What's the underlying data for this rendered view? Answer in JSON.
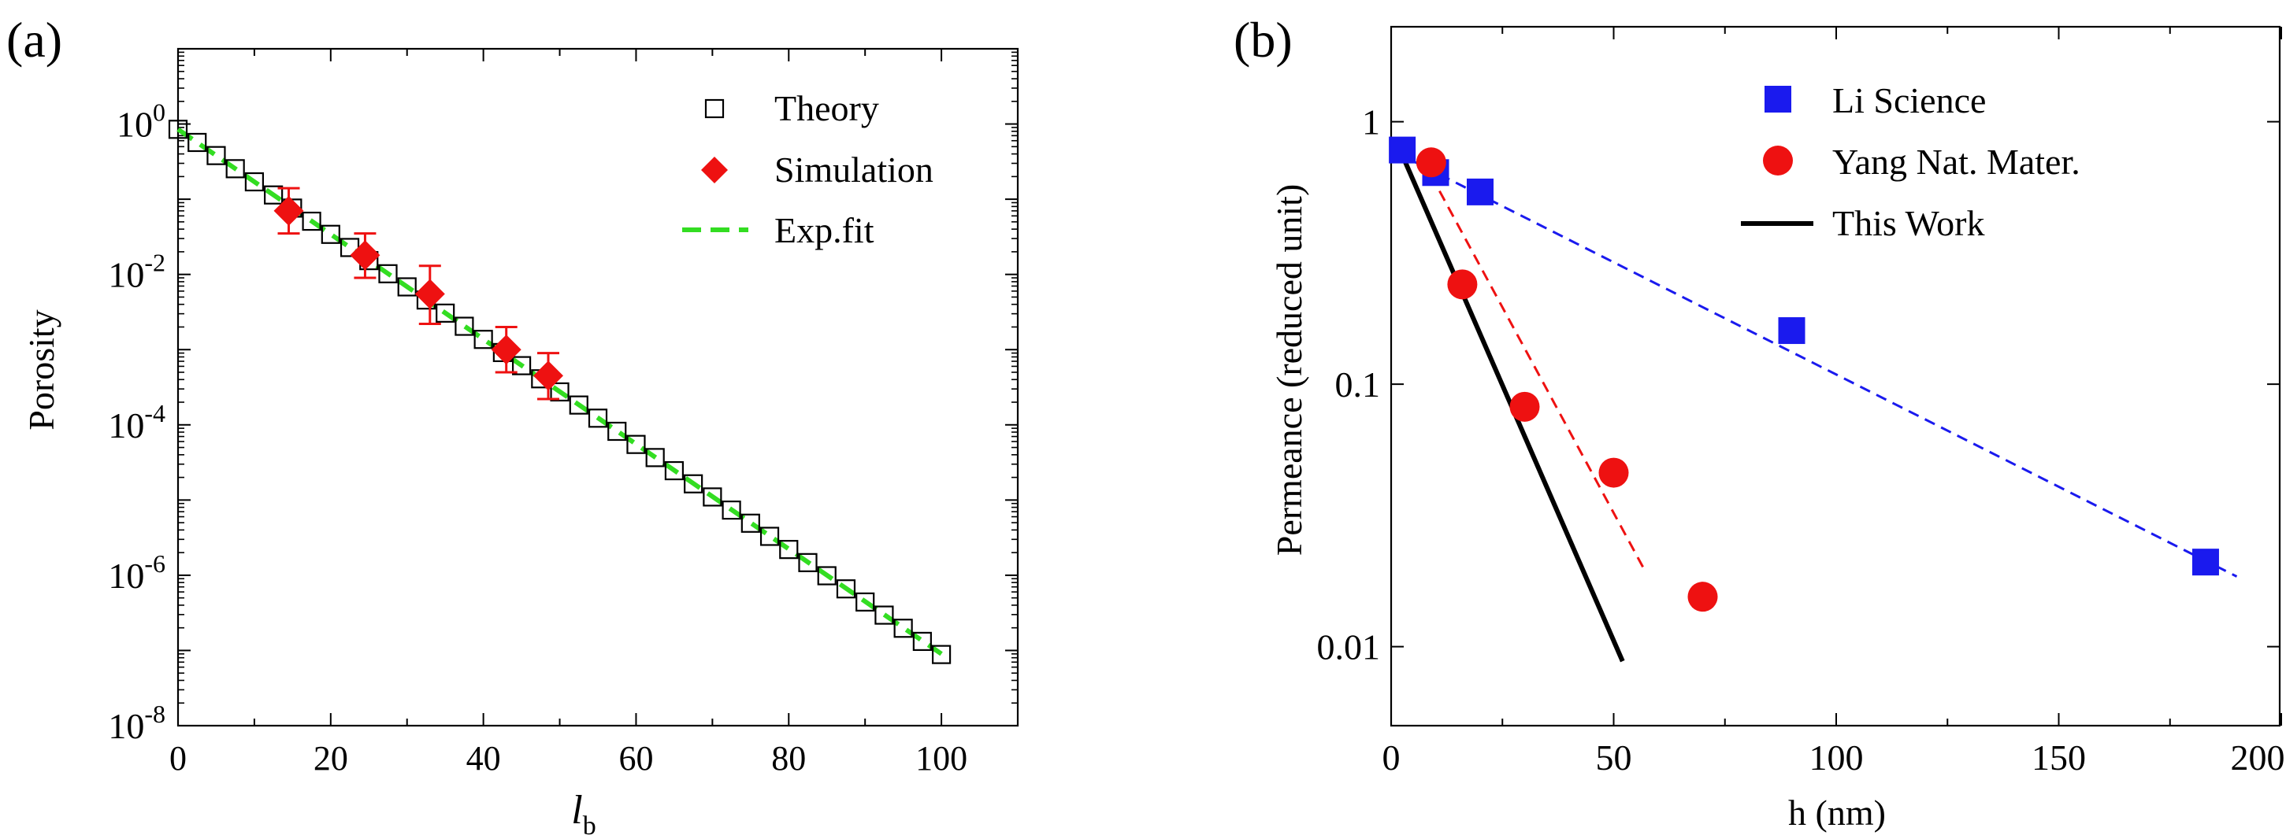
{
  "chart_data": [
    {
      "panel_label": "(a)",
      "type": "scatter",
      "xlabel_main": "l",
      "xlabel_sub": "b",
      "ylabel": "Porosity",
      "yscale": "log",
      "xlim": [
        0,
        110
      ],
      "ylim": [
        1e-08,
        10
      ],
      "xticks": [
        0,
        20,
        40,
        60,
        80,
        100
      ],
      "xtick_labels": [
        "0",
        "20",
        "40",
        "60",
        "80",
        "100"
      ],
      "ytick_exponents": [
        0,
        -2,
        -4,
        -6,
        -8
      ],
      "ytick_base": "10",
      "legend_position": "top-right",
      "series": [
        {
          "name": "Theory",
          "marker": "open-square",
          "color": "#000000",
          "x": [
            0,
            2.5,
            5,
            7.5,
            10,
            12.5,
            15,
            17.5,
            20,
            22.5,
            25,
            27.5,
            30,
            32.5,
            35,
            37.5,
            40,
            42.5,
            45,
            47.5,
            50,
            52.5,
            55,
            57.5,
            60,
            62.5,
            65,
            67.5,
            70,
            72.5,
            75,
            77.5,
            80,
            82.5,
            85,
            87.5,
            90,
            92.5,
            95,
            97.5,
            100
          ],
          "exp_model": {
            "a": 0.85,
            "k": 0.1608
          }
        },
        {
          "name": "Simulation",
          "marker": "filled-diamond",
          "color": "#ee1111",
          "x": [
            14.5,
            24.5,
            33,
            43,
            48.5
          ],
          "y": [
            0.07,
            0.018,
            0.0055,
            0.001,
            0.00045
          ],
          "err_low": [
            0.035,
            0.009,
            0.0022,
            0.0005,
            0.00022
          ],
          "err_high": [
            0.14,
            0.035,
            0.013,
            0.002,
            0.0009
          ]
        },
        {
          "name": "Exp.fit",
          "line": "dashed",
          "color": "#33dd22",
          "x": [
            0,
            100
          ],
          "y": [
            0.85,
            9e-08
          ]
        }
      ]
    },
    {
      "panel_label": "(b)",
      "type": "scatter",
      "xlabel": "h (nm)",
      "ylabel": "Permeance (reduced unit)",
      "yscale": "log",
      "xlim": [
        0,
        200
      ],
      "ylim": [
        0.005,
        2.3
      ],
      "xticks": [
        0,
        50,
        100,
        150,
        200
      ],
      "xtick_labels": [
        "0",
        "50",
        "100",
        "150",
        "200"
      ],
      "yticks": [
        1,
        0.1,
        0.01
      ],
      "ytick_labels": [
        "1",
        "0.1",
        "0.01"
      ],
      "legend_position": "top-right",
      "series": [
        {
          "name": "Li Science",
          "marker": "filled-square",
          "color": "#1a1aee",
          "x": [
            2.5,
            10,
            20,
            90,
            183
          ],
          "y": [
            0.78,
            0.64,
            0.54,
            0.16,
            0.021
          ],
          "fit": {
            "x": [
              0,
              190
            ],
            "y": [
              0.78,
              0.0185
            ]
          }
        },
        {
          "name": "Yang Nat. Mater.",
          "marker": "filled-circle",
          "color": "#ee1111",
          "x": [
            9,
            16,
            30,
            50,
            70
          ],
          "y": [
            0.7,
            0.24,
            0.082,
            0.046,
            0.0155
          ],
          "fit": {
            "x": [
              7,
              57
            ],
            "y": [
              0.72,
              0.0195
            ]
          }
        },
        {
          "name": "This Work",
          "line": "solid",
          "color": "#000000",
          "x": [
            2,
            52
          ],
          "y": [
            0.78,
            0.0088
          ]
        }
      ]
    }
  ]
}
